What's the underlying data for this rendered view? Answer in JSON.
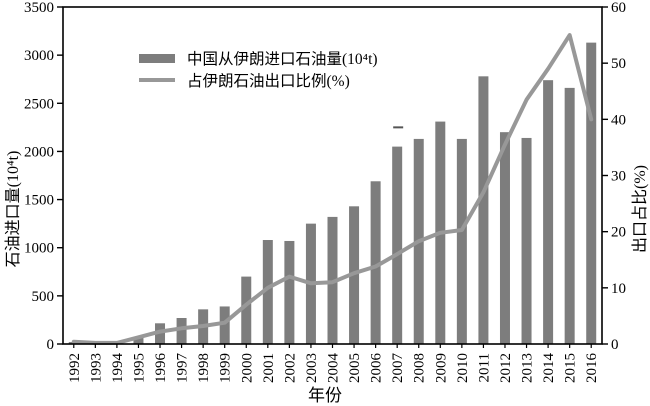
{
  "chart_data": {
    "type": "bar",
    "subtype": "combo-bar-line-dual-axis",
    "title": "",
    "xlabel": "年份",
    "categories": [
      "1992",
      "1993",
      "1994",
      "1995",
      "1996",
      "1997",
      "1998",
      "1999",
      "2000",
      "2001",
      "2002",
      "2003",
      "2004",
      "2005",
      "2006",
      "2007",
      "2008",
      "2009",
      "2010",
      "2011",
      "2012",
      "2013",
      "2014",
      "2015",
      "2016"
    ],
    "series": [
      {
        "name": "中国从伊朗进口石油量(10⁴t)",
        "type": "bar",
        "axis": "left",
        "color": "#7d7d7d",
        "values": [
          20,
          6,
          5,
          70,
          215,
          270,
          360,
          390,
          700,
          1080,
          1070,
          1250,
          1320,
          1430,
          1690,
          2050,
          2130,
          2310,
          2130,
          2780,
          2200,
          2140,
          2740,
          2660,
          3130
        ]
      },
      {
        "name": "占伊朗石油出口比例(%)",
        "type": "line",
        "axis": "right",
        "color": "#989898",
        "values": [
          0.4,
          0.2,
          0.2,
          1.2,
          2.2,
          2.8,
          3.2,
          3.8,
          7,
          10,
          12,
          10.8,
          11,
          12.6,
          13.8,
          16,
          18.3,
          19.8,
          20.3,
          27,
          35.5,
          43.5,
          49,
          55,
          40
        ]
      }
    ],
    "left_axis": {
      "label": "石油进口量(10⁴t)",
      "min": 0,
      "max": 3500,
      "step": 500,
      "tick_labels": [
        "0",
        "500",
        "1000",
        "1500",
        "2000",
        "2500",
        "3000",
        "3500"
      ]
    },
    "right_axis": {
      "label": "出口占比(%)",
      "min": 0,
      "max": 60,
      "step": 10,
      "tick_labels": [
        "0",
        "10",
        "20",
        "30",
        "40",
        "50",
        "60"
      ]
    },
    "grid": false,
    "legend_position": "inside-top-left",
    "annotations": [
      {
        "type": "dash",
        "category": "2007",
        "left_axis_value": 2250
      }
    ]
  },
  "axis_titles": {
    "left": "石油进口量(10⁴t)",
    "right": "出口占比(%)",
    "bottom": "年份"
  },
  "legend": {
    "bar_label": "中国从伊朗进口石油量(10⁴t)",
    "line_label": "占伊朗石油出口比例(%)"
  },
  "colors": {
    "bar": "#7d7d7d",
    "line": "#989898",
    "axis": "#000000",
    "background": "#ffffff",
    "annotation_dash": "#555555"
  }
}
